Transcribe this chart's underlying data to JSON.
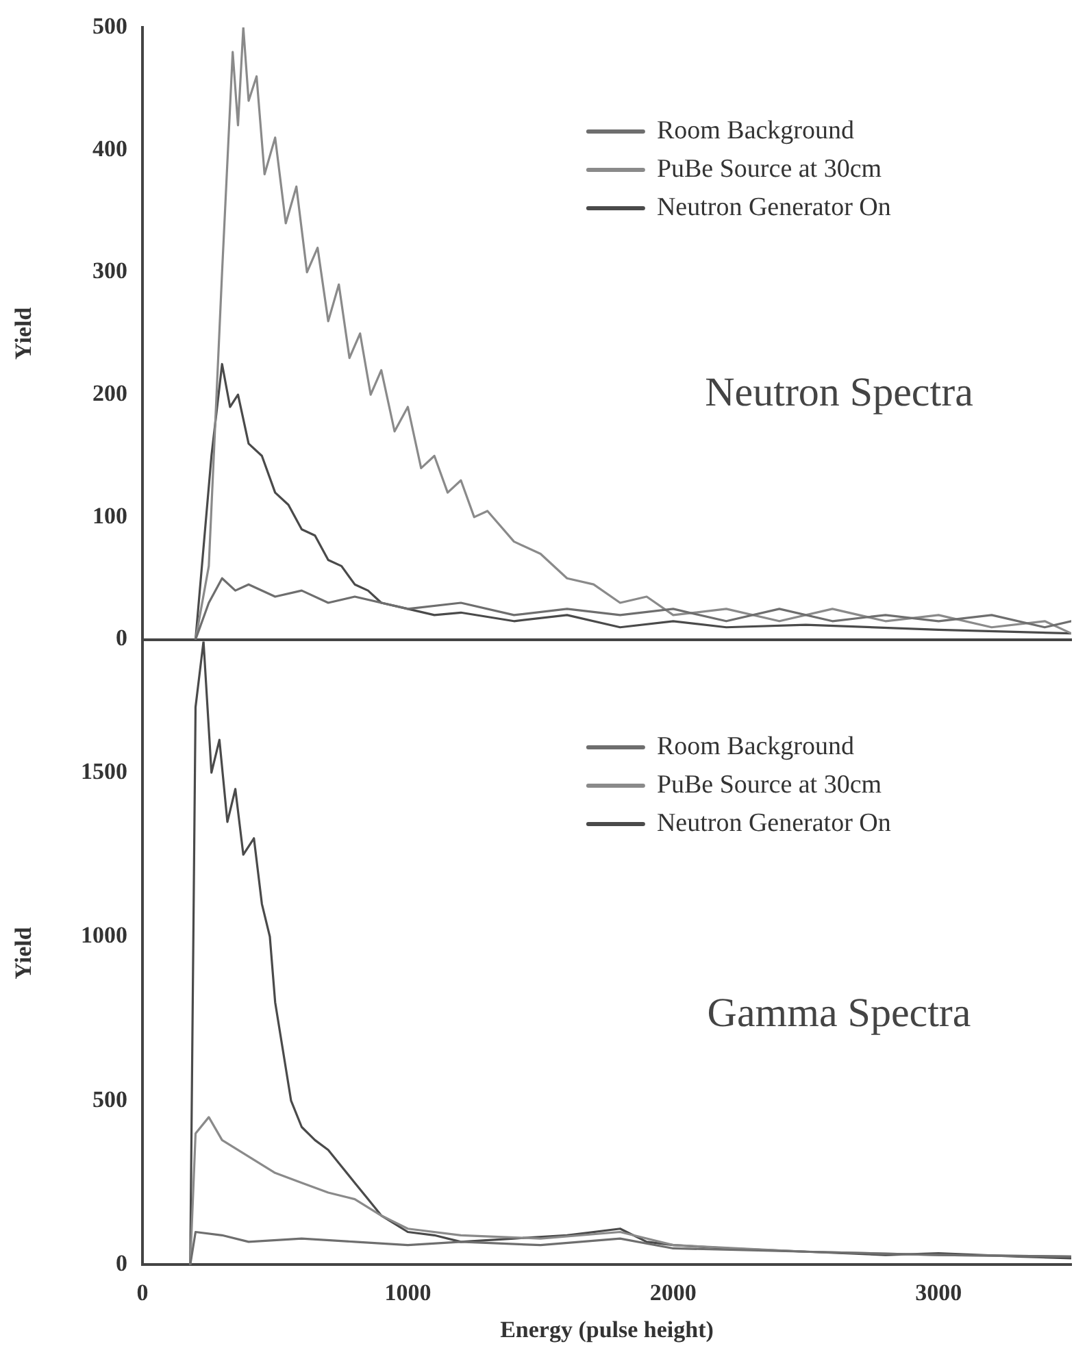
{
  "chart_data": [
    {
      "type": "line",
      "ylabel": "Yield",
      "annotations": [
        "Neutron Spectra"
      ],
      "xlim": [
        0,
        3500
      ],
      "ylim": [
        0,
        500
      ],
      "yticks": [
        0,
        100,
        200,
        300,
        400,
        500
      ],
      "tick_labels": "y",
      "legend": "top right",
      "grid": false,
      "marker": "none",
      "line_style": "solid",
      "series": [
        {
          "name": "Room Background",
          "color": "#6e6e6e",
          "x": [
            200,
            250,
            300,
            350,
            400,
            500,
            600,
            700,
            800,
            1000,
            1200,
            1400,
            1600,
            1800,
            2000,
            2200,
            2400,
            2600,
            2800,
            3000,
            3200,
            3400,
            3500
          ],
          "values": [
            0,
            30,
            50,
            40,
            45,
            35,
            40,
            30,
            35,
            25,
            30,
            20,
            25,
            20,
            25,
            15,
            25,
            15,
            20,
            15,
            20,
            10,
            15
          ]
        },
        {
          "name": "PuBe Source at 30cm",
          "color": "#8a8a8a",
          "x": [
            200,
            250,
            300,
            340,
            360,
            380,
            400,
            430,
            460,
            500,
            540,
            580,
            620,
            660,
            700,
            740,
            780,
            820,
            860,
            900,
            950,
            1000,
            1050,
            1100,
            1150,
            1200,
            1250,
            1300,
            1400,
            1500,
            1600,
            1700,
            1800,
            1900,
            2000,
            2200,
            2400,
            2600,
            2800,
            3000,
            3200,
            3400,
            3500
          ],
          "values": [
            0,
            60,
            300,
            480,
            420,
            500,
            440,
            460,
            380,
            410,
            340,
            370,
            300,
            320,
            260,
            290,
            230,
            250,
            200,
            220,
            170,
            190,
            140,
            150,
            120,
            130,
            100,
            105,
            80,
            70,
            50,
            45,
            30,
            35,
            20,
            25,
            15,
            25,
            15,
            20,
            10,
            15,
            5
          ]
        },
        {
          "name": "Neutron Generator On",
          "color": "#4a4a4a",
          "x": [
            200,
            260,
            300,
            330,
            360,
            400,
            450,
            500,
            550,
            600,
            650,
            700,
            750,
            800,
            850,
            900,
            1000,
            1100,
            1200,
            1400,
            1600,
            1800,
            2000,
            2200,
            2500,
            3000,
            3500
          ],
          "values": [
            0,
            150,
            225,
            190,
            200,
            160,
            150,
            120,
            110,
            90,
            85,
            65,
            60,
            45,
            40,
            30,
            25,
            20,
            22,
            15,
            20,
            10,
            15,
            10,
            12,
            8,
            5
          ]
        }
      ]
    },
    {
      "type": "line",
      "xlabel": "Energy (pulse height)",
      "ylabel": "Yield",
      "annotations": [
        "Gamma Spectra"
      ],
      "xlim": [
        0,
        3500
      ],
      "xticks": [
        0,
        1000,
        2000,
        3000
      ],
      "ylim": [
        0,
        1900
      ],
      "yticks": [
        0,
        500,
        1000,
        1500
      ],
      "legend": "top right",
      "grid": false,
      "marker": "none",
      "line_style": "solid",
      "series": [
        {
          "name": "Room Background",
          "color": "#6e6e6e",
          "x": [
            180,
            200,
            300,
            400,
            600,
            800,
            1000,
            1200,
            1500,
            1800,
            2000,
            2500,
            3000,
            3500
          ],
          "values": [
            0,
            100,
            90,
            70,
            80,
            70,
            60,
            70,
            60,
            80,
            50,
            40,
            30,
            25
          ]
        },
        {
          "name": "PuBe Source at 30cm",
          "color": "#8a8a8a",
          "x": [
            180,
            200,
            250,
            300,
            400,
            500,
            600,
            700,
            800,
            900,
            1000,
            1200,
            1500,
            1800,
            2000,
            2500,
            3000,
            3500
          ],
          "values": [
            0,
            400,
            450,
            380,
            330,
            280,
            250,
            220,
            200,
            150,
            110,
            90,
            80,
            100,
            60,
            40,
            30,
            25
          ]
        },
        {
          "name": "Neutron Generator On",
          "color": "#4a4a4a",
          "x": [
            180,
            200,
            230,
            260,
            290,
            320,
            350,
            380,
            420,
            450,
            480,
            500,
            530,
            560,
            600,
            650,
            700,
            750,
            800,
            850,
            900,
            1000,
            1100,
            1200,
            1400,
            1600,
            1800,
            1900,
            2000,
            2200,
            2500,
            2800,
            3000,
            3300,
            3500
          ],
          "values": [
            0,
            1700,
            1900,
            1500,
            1600,
            1350,
            1450,
            1250,
            1300,
            1100,
            1000,
            800,
            650,
            500,
            420,
            380,
            350,
            300,
            250,
            200,
            150,
            100,
            90,
            70,
            80,
            90,
            110,
            70,
            60,
            50,
            40,
            30,
            35,
            25,
            20
          ]
        }
      ]
    }
  ]
}
